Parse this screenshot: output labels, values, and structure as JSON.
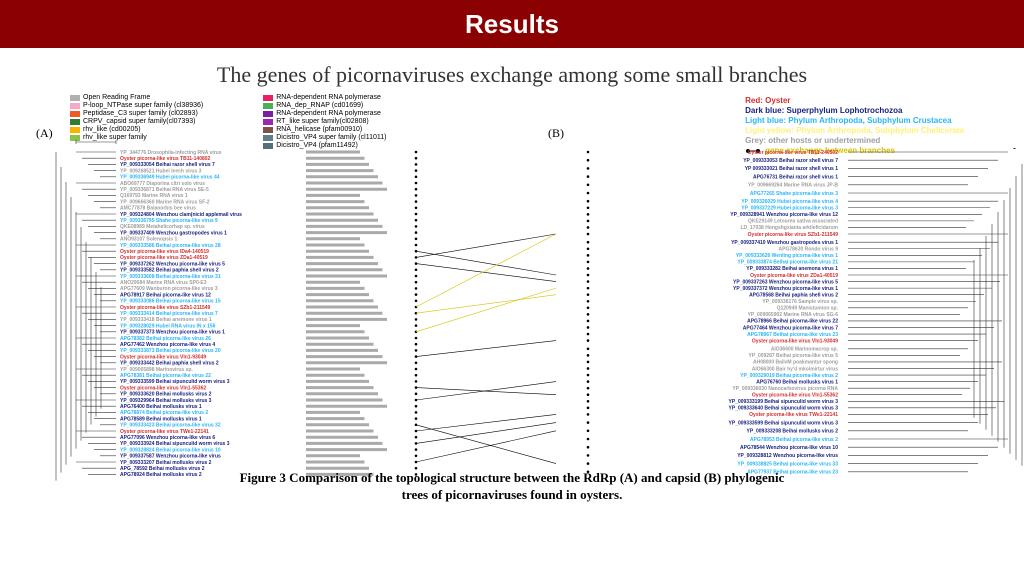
{
  "header": {
    "title": "Results"
  },
  "subtitle": "The genes of picornaviruses exchange among some small branches",
  "caption": "Figure 3 Comparison of the topological structure between the RdRp (A) and capsid (B) phylogenic trees of picornaviruses found in oysters.",
  "panels": {
    "A": "(A)",
    "B": "(B)"
  },
  "domain_legend": [
    {
      "label": "Open Reading Frame",
      "color": "#b0b0b0"
    },
    {
      "label": "P-loop_NTPase super family (cl38936)",
      "color": "#f5a8c8"
    },
    {
      "label": "Peptidase_C3 super family (cl02893)",
      "color": "#f05a28"
    },
    {
      "label": "CRPV_capsid super family(cl07393)",
      "color": "#2e7d32"
    },
    {
      "label": "rhv_like (cd00205)",
      "color": "#f7b500"
    },
    {
      "label": "rhv_like super family",
      "color": "#8bc34a"
    }
  ],
  "domain_legend2": [
    {
      "label": "RNA-dependent RNA polymerase",
      "color": "#e91e63"
    },
    {
      "label": "RNA_dep_RNAP (cd01699)",
      "color": "#4caf50"
    },
    {
      "label": "RNA-dependent RNA polymerase",
      "color": "#7b1fa2"
    },
    {
      "label": "RT_like super family(cl02808)",
      "color": "#9c27b0"
    },
    {
      "label": "RNA_helicase (pfam00910)",
      "color": "#795548"
    },
    {
      "label": "Dicistro_VP4 super family (cl11011)",
      "color": "#607d8b"
    },
    {
      "label": "Dicistro_VP4 (pfam11492)",
      "color": "#546e7a"
    }
  ],
  "host_legend": {
    "oyster": {
      "label": "Red: Oyster",
      "color": "#d32f2f"
    },
    "lopho": {
      "label": "Dark blue: Superphylum Lophotrochozoa",
      "color": "#1a237e"
    },
    "crust": {
      "label": "Light blue: Phylum Arthropoda, Subphylum Crustacea",
      "color": "#29b6f6"
    },
    "chel": {
      "label": "Light yellow: Phylum Arthropoda, Subphylum Chelicerata",
      "color": "#fff176"
    },
    "grey": {
      "label": "Grey: other hosts or undertermined",
      "color": "#9e9e9e"
    },
    "exchange": {
      "label": "gene exchange between branches",
      "dot": "#000000"
    }
  },
  "colors": {
    "oyster": "#d32f2f",
    "darkblue": "#1a237e",
    "lightblue": "#29b6f6",
    "grey": "#9e9e9e",
    "yellow": "#d4c400"
  },
  "tree_a": {
    "taxa": [
      {
        "y": 0,
        "name": "YP_344776 Drosophila-infecting RNA virus",
        "c": "grey"
      },
      {
        "y": 1,
        "name": "Oyster picorna-like virus TB11-140802",
        "c": "oyster"
      },
      {
        "y": 2,
        "name": "YP_009333054 Beihai razor shell virus 7",
        "c": "darkblue"
      },
      {
        "y": 3,
        "name": "YP_009268521 Hubei leech virus 3",
        "c": "grey"
      },
      {
        "y": 4,
        "name": "YP_009336949 Hubei picorna-like virus 44",
        "c": "lightblue"
      },
      {
        "y": 5,
        "name": "ABO69777 Diaporina citri solo virus",
        "c": "grey"
      },
      {
        "y": 6,
        "name": "YP_009336871 Beihai RNA virus SE-5",
        "c": "grey"
      },
      {
        "y": 7,
        "name": "Q169793 Marine RNA virus 1",
        "c": "grey"
      },
      {
        "y": 8,
        "name": "YP_009666360 Marine RNA virus SF-2",
        "c": "grey"
      },
      {
        "y": 9,
        "name": "AMC77878 Balanorbis bee virus",
        "c": "grey"
      },
      {
        "y": 10,
        "name": "YP_009324804 Wenzhou clam(nicid applemail virus",
        "c": "darkblue"
      },
      {
        "y": 11,
        "name": "YP_009336795 Shahe picorna-like virus 9",
        "c": "lightblue"
      },
      {
        "y": 12,
        "name": "QKE08989 Metahelicorhap sp. virus",
        "c": "grey"
      },
      {
        "y": 13,
        "name": "YP_009337409 Wenzhou gastropodes virus 1",
        "c": "darkblue"
      },
      {
        "y": 14,
        "name": "ANO93107 Solenopsis 1",
        "c": "grey"
      },
      {
        "y": 15,
        "name": "YP_009333586 Beihai picorna-like virus 28",
        "c": "lightblue"
      },
      {
        "y": 16,
        "name": "Oyster picorna-like virus IDa4-140519",
        "c": "oyster"
      },
      {
        "y": 17,
        "name": "Oyster picorna-like virus ZDa1-40519",
        "c": "oyster"
      },
      {
        "y": 18,
        "name": "YP_009337262 Wenzhou picorna-like virus 5",
        "c": "darkblue"
      },
      {
        "y": 19,
        "name": "YP_009333582 Beihai paphia shell virus 2",
        "c": "darkblue"
      },
      {
        "y": 20,
        "name": "YP_009333608 Beihai picorna-like virus 31",
        "c": "lightblue"
      },
      {
        "y": 21,
        "name": "ANO29084 Marine RNA virus SP0-E3",
        "c": "grey"
      },
      {
        "y": 22,
        "name": "APG77609 Wanburon picorna-like virus 3",
        "c": "grey"
      },
      {
        "y": 23,
        "name": "APG78917 Beihai picorna-like virus 12",
        "c": "darkblue"
      },
      {
        "y": 24,
        "name": "YP_009333086 Beihai picorna-like virus 15",
        "c": "lightblue"
      },
      {
        "y": 25,
        "name": "Oyster picorna-like virus SZb1-211549",
        "c": "oyster"
      },
      {
        "y": 26,
        "name": "YP_009333414 Beihai picorna-like virus 7",
        "c": "lightblue"
      },
      {
        "y": 27,
        "name": "YP_009333418 Beihai anemone virus 1",
        "c": "grey"
      },
      {
        "y": 28,
        "name": "YP_009328029 Hubei RNA virus IN x 156",
        "c": "lightblue"
      },
      {
        "y": 29,
        "name": "YP_009337373 Wenzhou picorna-like virus 1",
        "c": "darkblue"
      },
      {
        "y": 30,
        "name": "APG78382 Beihai picorna-like virus 26",
        "c": "lightblue"
      },
      {
        "y": 31,
        "name": "APG77462 Wenzhou picorna-like virus 4",
        "c": "darkblue"
      },
      {
        "y": 32,
        "name": "YP_009333873 Beihai picorna-like virus 20",
        "c": "lightblue"
      },
      {
        "y": 33,
        "name": "Oyster picorna-like virus VIn1-93049",
        "c": "oyster"
      },
      {
        "y": 34,
        "name": "YP_009333442 Beihai paphia shell virus 2",
        "c": "darkblue"
      },
      {
        "y": 35,
        "name": "YP_009065898 Marinovirus sp.",
        "c": "grey"
      },
      {
        "y": 36,
        "name": "APG78381 Beihai picorna-like virus 22",
        "c": "lightblue"
      },
      {
        "y": 37,
        "name": "YP_009333599 Beihai sipunculid worm virus 3",
        "c": "darkblue"
      },
      {
        "y": 38,
        "name": "Oyster picorna-like virus VIn1-55362",
        "c": "oyster"
      },
      {
        "y": 39,
        "name": "YP_009333620 Beihai mollusks virus 2",
        "c": "darkblue"
      },
      {
        "y": 40,
        "name": "YP_009329964 Beihai mollusks virus 3",
        "c": "darkblue"
      },
      {
        "y": 41,
        "name": "APG76400 Beihai mollusks virus 1",
        "c": "darkblue"
      },
      {
        "y": 42,
        "name": "APG78874 Beihai picorna-like virus 2",
        "c": "lightblue"
      },
      {
        "y": 43,
        "name": "APG78589 Beihai mollusks virus 1",
        "c": "darkblue"
      },
      {
        "y": 44,
        "name": "YP_009333423 Beihai picorna-like virus 32",
        "c": "lightblue"
      },
      {
        "y": 45,
        "name": "Oyster picorna-like virus TWe1-22141",
        "c": "oyster"
      },
      {
        "y": 46,
        "name": "APG77096 Wenzhou picorna-like virus 6",
        "c": "darkblue"
      },
      {
        "y": 47,
        "name": "YP_009333924 Beihai sipunculid worm virus 3",
        "c": "darkblue"
      },
      {
        "y": 48,
        "name": "YP_009328824 Beihai picorna-like virus 10",
        "c": "lightblue"
      },
      {
        "y": 49,
        "name": "YP_009337587 Wenzhou picorna-like virus",
        "c": "darkblue"
      },
      {
        "y": 50,
        "name": "YP_009333207 Beihai mollusks virus 2",
        "c": "darkblue"
      },
      {
        "y": 51,
        "name": "APG_78592 Beihai mollusks virus 2",
        "c": "darkblue"
      },
      {
        "y": 52,
        "name": "APG78924 Beihai mollusks virus 2",
        "c": "darkblue"
      }
    ]
  },
  "tree_b": {
    "taxa": [
      {
        "y": 0,
        "name": "Oyster picorna-like virus TB11-240502",
        "c": "oyster"
      },
      {
        "y": 1,
        "name": "YP_009333053 Beihai razor shell virus 7",
        "c": "darkblue"
      },
      {
        "y": 2,
        "name": "YP 009333021 Beihai razor shell virus 1",
        "c": "darkblue"
      },
      {
        "y": 3,
        "name": "APG76731 Beihai razor shell virus 1",
        "c": "darkblue"
      },
      {
        "y": 4,
        "name": "YP_009669264 Marine RNA virus JP-B",
        "c": "grey"
      },
      {
        "y": 5,
        "name": "APG77265 Shahe picorna-like virus 3",
        "c": "lightblue"
      },
      {
        "y": 6,
        "name": "YP_009326029 Hubei picorna-like virus 4",
        "c": "lightblue"
      },
      {
        "y": 6.8,
        "name": "YP_009337229 Hubei picorna-like virus 3",
        "c": "lightblue"
      },
      {
        "y": 7.6,
        "name": "YP_009328941 Wenzhou picorna-like virus 12",
        "c": "darkblue"
      },
      {
        "y": 8.4,
        "name": "QKE29149 Letourea sativa associated",
        "c": "grey"
      },
      {
        "y": 9.2,
        "name": "LD_17038 Hongshgxiania arkileficidarum",
        "c": "grey"
      },
      {
        "y": 10,
        "name": "Oyster picorna-like virus SZb1-211549",
        "c": "oyster"
      },
      {
        "y": 11,
        "name": "YP_009337410 Wenzhou gastropodes virus 1",
        "c": "darkblue"
      },
      {
        "y": 11.8,
        "name": "APG78630 Rondo virus 9",
        "c": "grey"
      },
      {
        "y": 12.6,
        "name": "YP_009333626 Wenling picorna-like virus 1",
        "c": "lightblue"
      },
      {
        "y": 13.4,
        "name": "YP_009333874 Beihai picorna-like virus 21",
        "c": "lightblue"
      },
      {
        "y": 14.2,
        "name": "YP_009333282 Beihai anemona virus 1",
        "c": "darkblue"
      },
      {
        "y": 15,
        "name": "Oyster picorna-like virus ZDa1-40519",
        "c": "oyster"
      },
      {
        "y": 15.8,
        "name": "YP_009337263 Wenzhou picorna-like virus 5",
        "c": "darkblue"
      },
      {
        "y": 16.6,
        "name": "YP_009337372 Wenzhou picorna-like virus 1",
        "c": "darkblue"
      },
      {
        "y": 17.4,
        "name": "APG78568 Beihai paphia shell virus 2",
        "c": "darkblue"
      },
      {
        "y": 18.2,
        "name": "YP_009336176 Sample virus sp.",
        "c": "grey"
      },
      {
        "y": 19,
        "name": "Q120949 Manistumion sp.",
        "c": "grey"
      },
      {
        "y": 19.8,
        "name": "YP_009065902 Marine RNA virus SG-6",
        "c": "grey"
      },
      {
        "y": 20.6,
        "name": "APG78966 Beihai picorna-like virus 22",
        "c": "darkblue"
      },
      {
        "y": 21.4,
        "name": "APG77464 Wenzhou picorna-like virus 7",
        "c": "darkblue"
      },
      {
        "y": 22.2,
        "name": "APG78967 Beihai picorna-like virus 23",
        "c": "lightblue"
      },
      {
        "y": 23,
        "name": "Oyster picorna-like virus VIn1-93049",
        "c": "oyster"
      },
      {
        "y": 24,
        "name": "AIO36600 Marinomacrop sp.",
        "c": "grey"
      },
      {
        "y": 24.8,
        "name": "YP_009287 Beihai picorna-like virus 5",
        "c": "grey"
      },
      {
        "y": 25.6,
        "name": "AH08000 BailvM poakmantur spong",
        "c": "grey"
      },
      {
        "y": 26.4,
        "name": "AIO66300 Bair hy'd mkolmirtur virus",
        "c": "grey"
      },
      {
        "y": 27.2,
        "name": "YP_009329019 Beihai picorna-like virus 2",
        "c": "lightblue"
      },
      {
        "y": 28,
        "name": "APG76760 Beihai mollusks virus 1",
        "c": "darkblue"
      },
      {
        "y": 28.8,
        "name": "YP_009336030 Nanocarbovirus picorna RNA",
        "c": "grey"
      },
      {
        "y": 29.6,
        "name": "Oyster picorna-like virus VIn1-55362",
        "c": "oyster"
      },
      {
        "y": 30.4,
        "name": "YP_009333199 Beihai sipunculid worm virus 3",
        "c": "darkblue"
      },
      {
        "y": 31.2,
        "name": "YP_009333640 Beihai sipunculid worm virus 3",
        "c": "darkblue"
      },
      {
        "y": 32,
        "name": "Oyster picorna-like virus TWe1-22141",
        "c": "oyster"
      },
      {
        "y": 33,
        "name": "YP_009333599 Beihai sipunculid worm virus 3",
        "c": "darkblue"
      },
      {
        "y": 34,
        "name": "YP_009333208 Beihai mollusks virus 2",
        "c": "darkblue"
      },
      {
        "y": 35,
        "name": "APG78953 Beihai picorna-like virus 2",
        "c": "lightblue"
      },
      {
        "y": 36,
        "name": "APG78544 Wenzhou picorna-like virus 10",
        "c": "darkblue"
      },
      {
        "y": 37,
        "name": "YP_009328812 Wenzhou picorna-like virus",
        "c": "darkblue"
      },
      {
        "y": 38,
        "name": "YP_009338825 Beihai picorna-like virus 33",
        "c": "lightblue"
      },
      {
        "y": 39,
        "name": "APG77937 Beihai picorna-like virus 23",
        "c": "lightblue"
      }
    ]
  },
  "crosslinks": [
    {
      "a": 16,
      "b": 15,
      "yellow": false
    },
    {
      "a": 17,
      "b": 10,
      "yellow": false
    },
    {
      "a": 18,
      "b": 15.8,
      "yellow": false
    },
    {
      "a": 25,
      "b": 10,
      "yellow": true
    },
    {
      "a": 26,
      "b": 17.4,
      "yellow": true
    },
    {
      "a": 29,
      "b": 16.6,
      "yellow": true
    },
    {
      "a": 33,
      "b": 23,
      "yellow": false
    },
    {
      "a": 38,
      "b": 29.6,
      "yellow": false
    },
    {
      "a": 40,
      "b": 28,
      "yellow": false
    },
    {
      "a": 44,
      "b": 38,
      "yellow": false
    },
    {
      "a": 45,
      "b": 32,
      "yellow": false
    },
    {
      "a": 47,
      "b": 33,
      "yellow": false
    },
    {
      "a": 50,
      "b": 34,
      "yellow": false
    }
  ]
}
